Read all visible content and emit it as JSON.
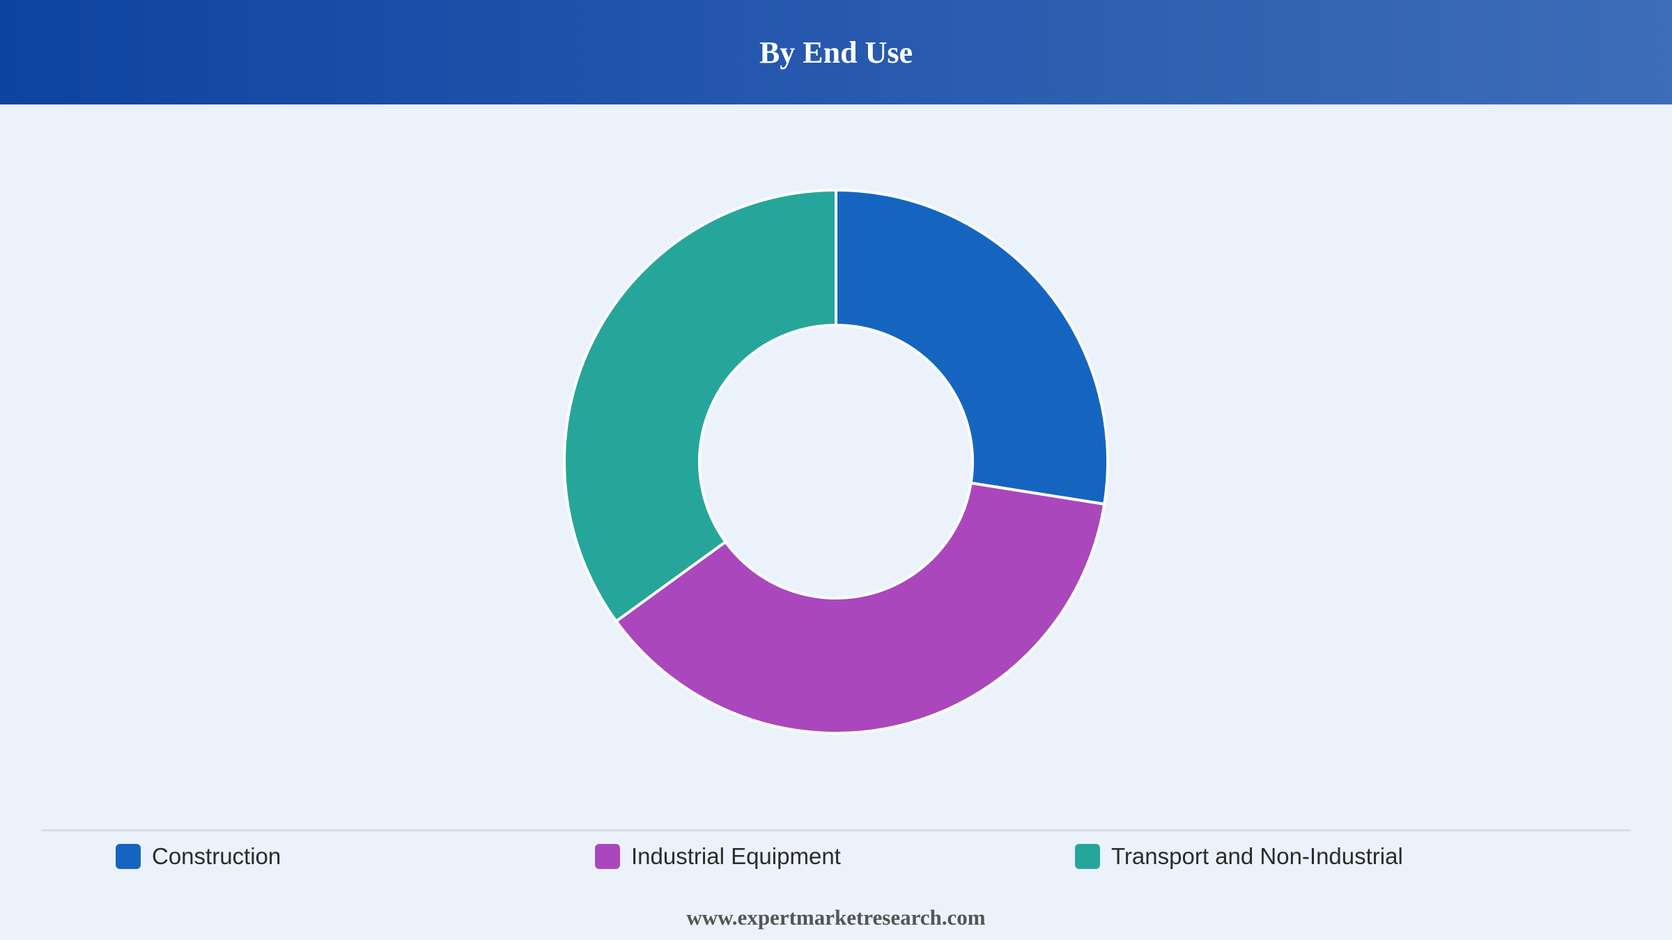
{
  "header": {
    "title": "By End Use"
  },
  "chart_data": {
    "type": "pie",
    "variant": "donut",
    "title": "By End Use",
    "categories": [
      "Construction",
      "Industrial Equipment",
      "Transport and Non-Industrial"
    ],
    "values": [
      27.5,
      37.5,
      35.0
    ],
    "colors": [
      "#1565c0",
      "#ab47bc",
      "#26a69a"
    ],
    "legend_position": "bottom"
  },
  "footer": {
    "url": "www.expertmarketresearch.com"
  }
}
